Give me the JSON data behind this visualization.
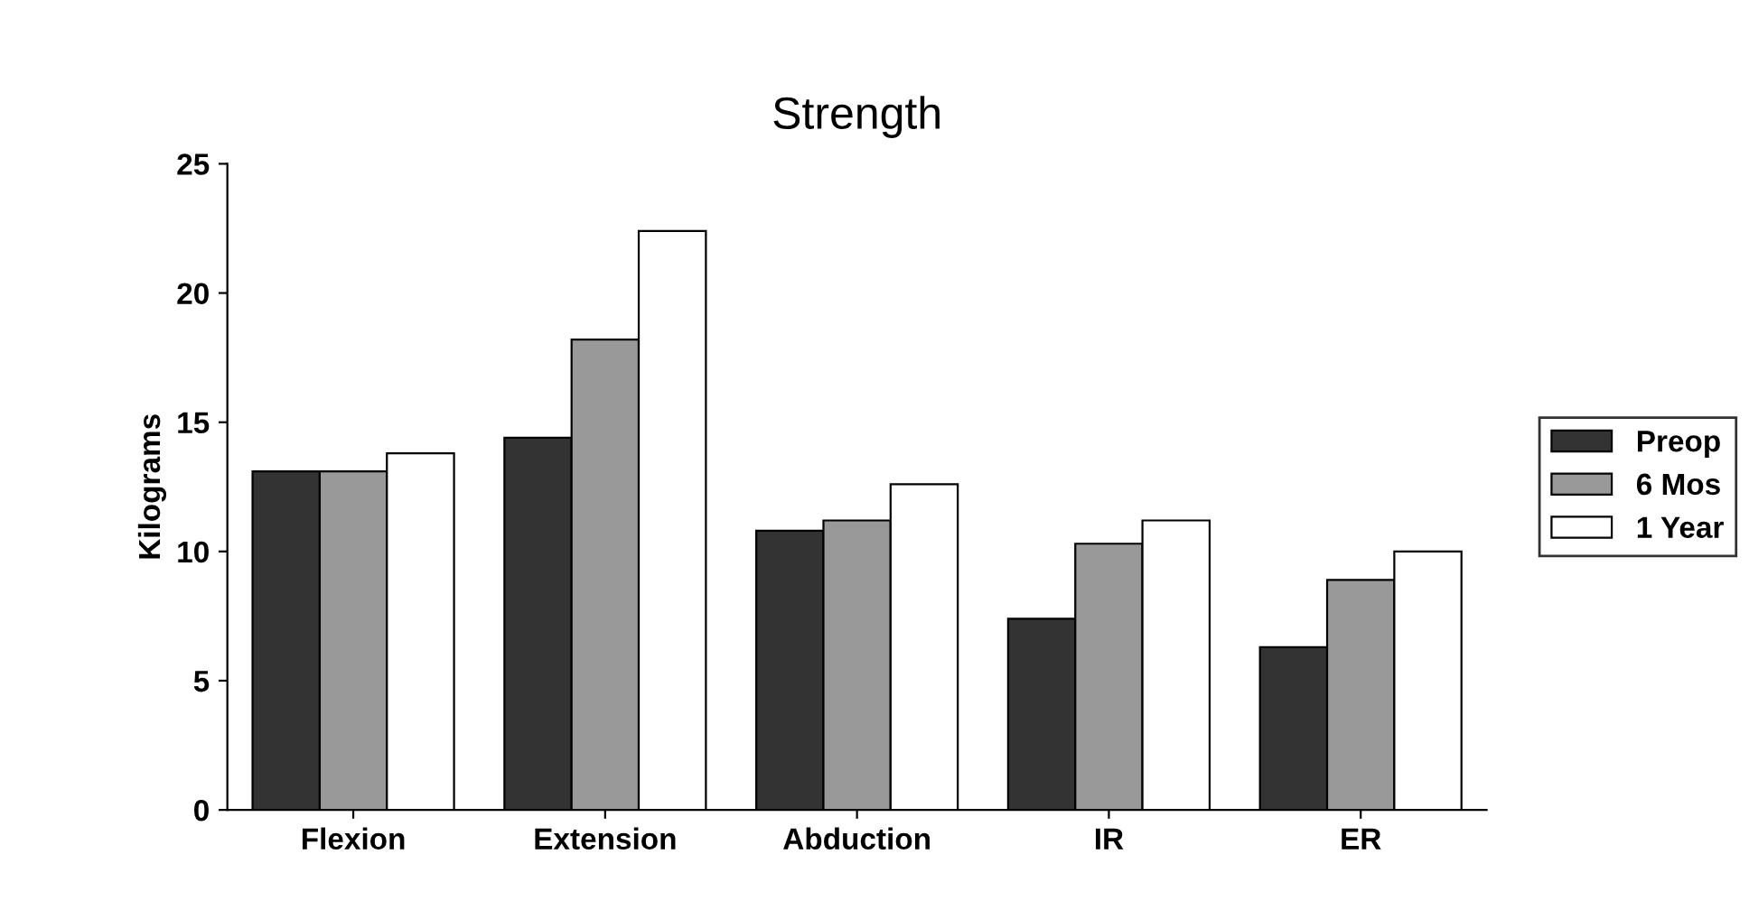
{
  "chart_data": {
    "type": "bar",
    "title": "Strength",
    "ylabel": "Kilograms",
    "categories": [
      "Flexion",
      "Extension",
      "Abduction",
      "IR",
      "ER"
    ],
    "series": [
      {
        "name": "Preop",
        "color": "#333333",
        "values": [
          13.1,
          14.4,
          10.8,
          7.4,
          6.3
        ]
      },
      {
        "name": "6 Mos",
        "color": "#999999",
        "values": [
          13.1,
          18.2,
          11.2,
          10.3,
          8.9
        ]
      },
      {
        "name": "1 Year",
        "color": "#ffffff",
        "values": [
          13.8,
          22.4,
          12.6,
          11.2,
          10.0
        ]
      }
    ],
    "ylim": [
      0,
      25
    ],
    "yticks": [
      0,
      5,
      10,
      15,
      20,
      25
    ],
    "grid": false,
    "legend": "right"
  }
}
